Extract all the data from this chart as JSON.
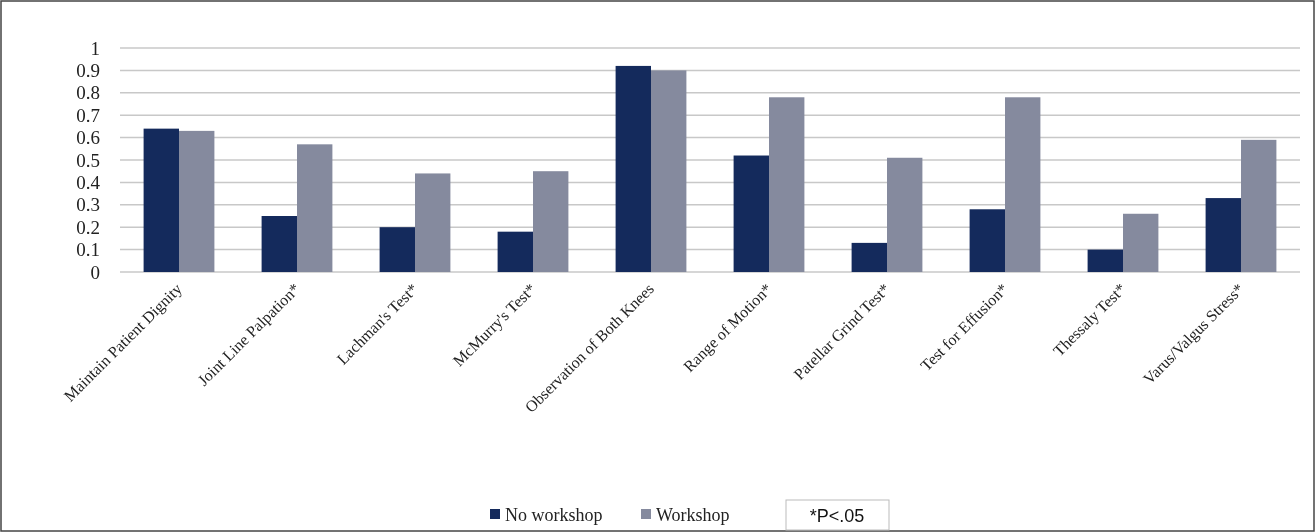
{
  "chart_data": {
    "type": "bar",
    "categories": [
      "Maintain Patient Dignity",
      "Joint Line Palpation*",
      "Lachman's Test*",
      "McMurry's Test*",
      "Observation of Both Knees",
      "Range of Motion*",
      "Patellar Grind Test*",
      "Test for Effusion*",
      "Thessaly Test*",
      "Varus/Valgus Stress*"
    ],
    "series": [
      {
        "name": "No workshop",
        "color": "#142a5c",
        "values": [
          0.64,
          0.25,
          0.2,
          0.18,
          0.92,
          0.52,
          0.13,
          0.28,
          0.1,
          0.33
        ]
      },
      {
        "name": "Workshop",
        "color": "#858a9e",
        "values": [
          0.63,
          0.57,
          0.44,
          0.45,
          0.9,
          0.78,
          0.51,
          0.78,
          0.26,
          0.59
        ]
      }
    ],
    "ylim": [
      0,
      1
    ],
    "yticks": [
      0,
      0.1,
      0.2,
      0.3,
      0.4,
      0.5,
      0.6,
      0.7,
      0.8,
      0.9,
      1
    ],
    "grid": "y",
    "legend": "bottom",
    "annotations": [
      "*P<.05"
    ]
  }
}
